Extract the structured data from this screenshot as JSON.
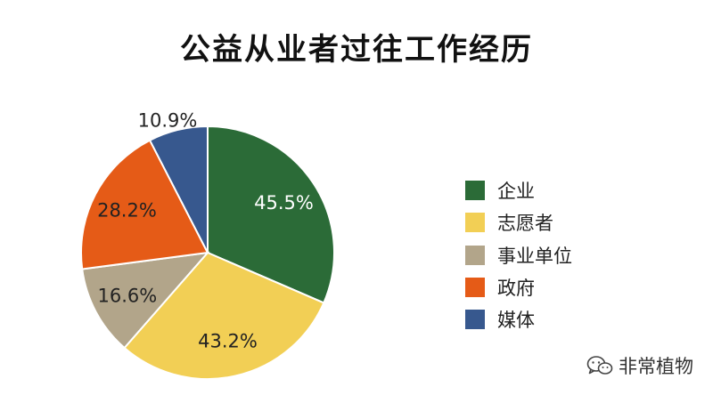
{
  "title": "公益从业者过往工作经历",
  "chart_data": {
    "type": "pie",
    "title": "公益从业者过往工作经历",
    "start": "12 o'clock",
    "direction": "clockwise",
    "legend_position": "right",
    "slices": [
      {
        "name": "企业",
        "label": "45.5%",
        "color": "#2b6b37",
        "label_color": "#ffffff",
        "share": 0.3146
      },
      {
        "name": "志愿者",
        "label": "43.2%",
        "color": "#f2cf55",
        "label_color": "#222222",
        "share": 0.2987
      },
      {
        "name": "事业单位",
        "label": "16.6%",
        "color": "#b2a58a",
        "label_color": "#222222",
        "share": 0.1148
      },
      {
        "name": "政府",
        "label": "28.2%",
        "color": "#e55b17",
        "label_color": "#222222",
        "share": 0.195
      },
      {
        "name": "媒体",
        "label": "10.9%",
        "color": "#37588e",
        "label_color": "#222222",
        "share": 0.0754
      }
    ]
  },
  "watermark": {
    "text": "非常植物",
    "icon": "wechat-icon"
  }
}
